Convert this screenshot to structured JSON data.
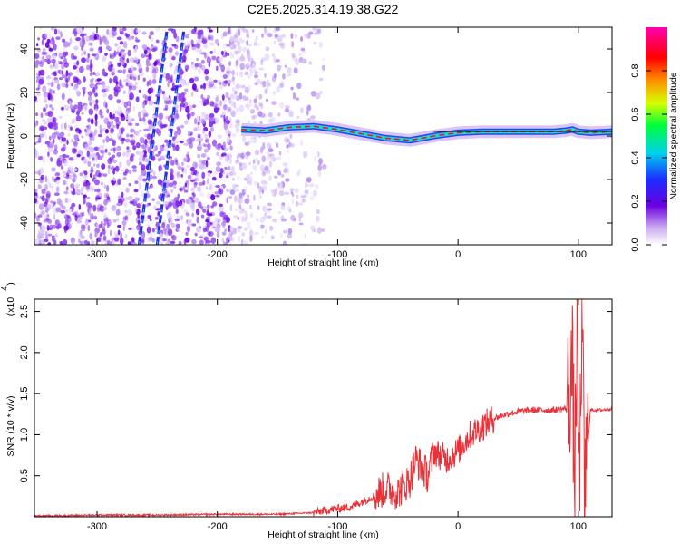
{
  "figure": {
    "title": "C2E5.2025.314.19.38.G22"
  },
  "chart_data": [
    {
      "type": "heatmap",
      "title": "C2E5.2025.314.19.38.G22",
      "xlabel": "Height of straight line (km)",
      "ylabel": "Frequency (Hz)",
      "xlim": [
        -352,
        128
      ],
      "ylim": [
        -50,
        50
      ],
      "xticks": [
        -300,
        -200,
        -100,
        0,
        100
      ],
      "yticks": [
        -40,
        -20,
        0,
        20,
        40
      ],
      "colorbar": {
        "label": "Normalized spectral amplitude",
        "range": [
          0,
          1
        ],
        "ticks": [
          0.0,
          0.2,
          0.4,
          0.6,
          0.8
        ]
      },
      "features": {
        "noise_region_x": [
          -352,
          -110
        ],
        "diagonal_streaks": [
          {
            "x_start": -265,
            "y_start": -50,
            "x_end": -242,
            "y_end": 48
          },
          {
            "x_start": -250,
            "y_start": -50,
            "x_end": -228,
            "y_end": 48
          }
        ],
        "main_signal_trace": {
          "x": [
            -180,
            -160,
            -140,
            -120,
            -100,
            -80,
            -60,
            -40,
            -20,
            0,
            20,
            40,
            60,
            80,
            90,
            95,
            100,
            110,
            128
          ],
          "y": [
            3,
            2.5,
            4,
            4.5,
            3,
            1,
            -1,
            -2,
            0,
            1.5,
            2,
            2,
            2,
            2,
            2.5,
            3,
            2,
            1.5,
            2
          ]
        }
      }
    },
    {
      "type": "line",
      "xlabel": "Height of straight line (km)",
      "ylabel": "SNR (10 * v/v)",
      "y_scale_label": "(x10",
      "y_scale_exponent": "4",
      "xlim": [
        -352,
        128
      ],
      "ylim": [
        0,
        2.65
      ],
      "xticks": [
        -300,
        -200,
        -100,
        0,
        100
      ],
      "yticks": [
        0.5,
        1.0,
        1.5,
        2.0,
        2.5
      ],
      "ytick_labels": [
        "0.5",
        "1.0",
        "1.5",
        "2.0",
        "2.5"
      ],
      "color": "#e8323a",
      "series": [
        {
          "x": [
            -352,
            -300,
            -250,
            -200,
            -150,
            -120,
            -110,
            -100,
            -90,
            -80,
            -70,
            -60,
            -50,
            -40,
            -35,
            -30,
            -25,
            -20,
            -10,
            0,
            10,
            20,
            30,
            40,
            50,
            60,
            70,
            80,
            90,
            95,
            97,
            99,
            101,
            103,
            105,
            110,
            120,
            128
          ],
          "y": [
            0.01,
            0.02,
            0.02,
            0.03,
            0.03,
            0.05,
            0.08,
            0.1,
            0.12,
            0.18,
            0.25,
            0.35,
            0.3,
            0.45,
            0.7,
            0.6,
            0.5,
            0.8,
            0.7,
            0.8,
            1.0,
            1.1,
            1.2,
            1.25,
            1.28,
            1.3,
            1.3,
            1.3,
            1.32,
            1.8,
            0.4,
            2.3,
            0.3,
            2.6,
            0.3,
            1.3,
            1.3,
            1.32
          ]
        }
      ]
    }
  ]
}
